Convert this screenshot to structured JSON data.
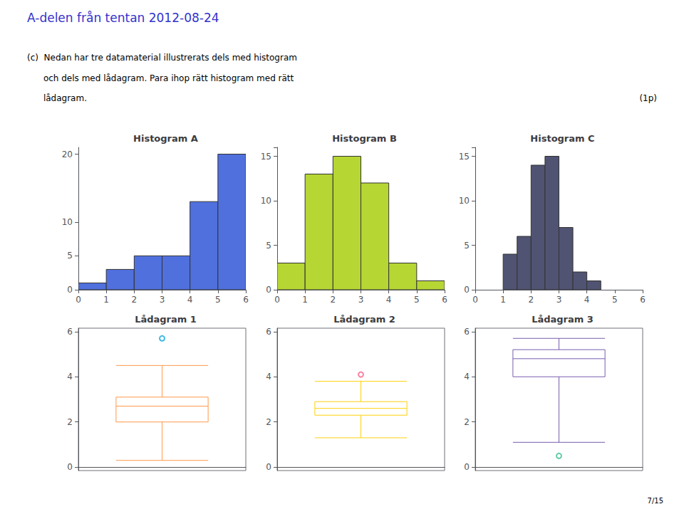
{
  "title": "A-delen från tentan 2012-08-24",
  "color": "#3333cc",
  "subtitle": [
    "(c)  Nedan har tre datamaterial illustrerats dels med histogram",
    "      och dels med lådagram. Para ihop rätt histogram med rätt",
    "      lådagram."
  ],
  "annotations": [
    "(1p)",
    "7/15"
  ],
  "chart_data": [
    {
      "type": "histogram",
      "title": "Histogram A",
      "bins": [
        0,
        1,
        2,
        3,
        4,
        5,
        6
      ],
      "values": [
        1,
        3,
        5,
        5,
        13,
        20
      ],
      "xlim": [
        0,
        6
      ],
      "xticks": [
        0,
        1,
        2,
        3,
        4,
        5,
        6
      ],
      "ylim": [
        0,
        21
      ],
      "yticks": [
        0,
        5,
        10,
        20
      ],
      "grid": false
    },
    {
      "type": "histogram",
      "title": "Histogram B",
      "bins": [
        0,
        1,
        2,
        3,
        4,
        5,
        6
      ],
      "values": [
        3,
        13,
        15,
        12,
        3,
        1
      ],
      "xlim": [
        0,
        6
      ],
      "xticks": [
        0,
        1,
        2,
        3,
        4,
        5,
        6
      ],
      "ylim": [
        0,
        16
      ],
      "yticks": [
        0,
        5,
        10,
        15
      ],
      "grid": false
    },
    {
      "type": "histogram",
      "title": "Histogram C",
      "bins": [
        1.0,
        1.5,
        2.0,
        2.5,
        3.0,
        3.5,
        4.0,
        4.5
      ],
      "values": [
        4,
        6,
        14,
        15,
        7,
        2,
        1
      ],
      "xlim": [
        0,
        6
      ],
      "xticks": [
        0,
        1,
        2,
        3,
        4,
        5,
        6
      ],
      "ylim": [
        0,
        16
      ],
      "yticks": [
        0,
        5,
        10,
        15
      ],
      "grid": false
    },
    {
      "type": "boxplot",
      "title": "Lådagram 1",
      "values": [
        0.3,
        2.0,
        2.7,
        3.1,
        4.5
      ],
      "outliers": [
        5.7
      ],
      "ylim": [
        -0.15,
        6.15
      ],
      "yticks": [
        0,
        2,
        4,
        6
      ],
      "grid": false,
      "tick_labels": "y"
    },
    {
      "type": "boxplot",
      "title": "Lådagram 2",
      "values": [
        1.3,
        2.3,
        2.6,
        2.9,
        3.8
      ],
      "outliers": [
        4.1
      ],
      "ylim": [
        -0.15,
        6.15
      ],
      "yticks": [
        0,
        2,
        4,
        6
      ],
      "grid": false,
      "tick_labels": "y"
    },
    {
      "type": "boxplot",
      "title": "Lådagram 3",
      "values": [
        1.1,
        4.0,
        4.8,
        5.2,
        5.7
      ],
      "outliers": [
        0.5
      ],
      "ylim": [
        -0.15,
        6.15
      ],
      "yticks": [
        0,
        2,
        4,
        6
      ],
      "grid": false,
      "tick_labels": "y"
    }
  ]
}
